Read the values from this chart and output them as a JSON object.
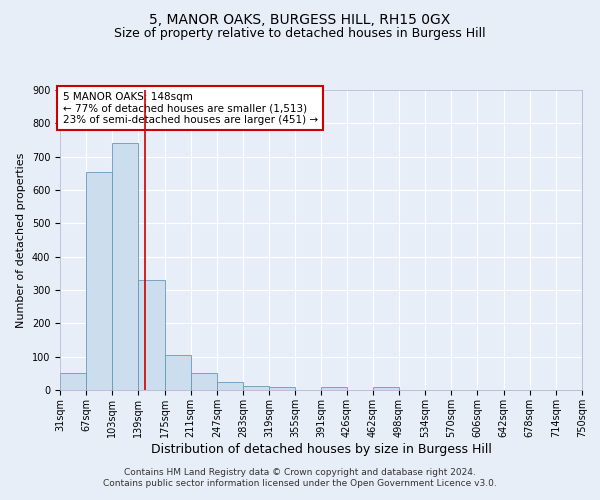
{
  "title": "5, MANOR OAKS, BURGESS HILL, RH15 0GX",
  "subtitle": "Size of property relative to detached houses in Burgess Hill",
  "xlabel": "Distribution of detached houses by size in Burgess Hill",
  "ylabel": "Number of detached properties",
  "footer_line1": "Contains HM Land Registry data © Crown copyright and database right 2024.",
  "footer_line2": "Contains public sector information licensed under the Open Government Licence v3.0.",
  "bin_labels": [
    "31sqm",
    "67sqm",
    "103sqm",
    "139sqm",
    "175sqm",
    "211sqm",
    "247sqm",
    "283sqm",
    "319sqm",
    "355sqm",
    "391sqm",
    "426sqm",
    "462sqm",
    "498sqm",
    "534sqm",
    "570sqm",
    "606sqm",
    "642sqm",
    "678sqm",
    "714sqm",
    "750sqm"
  ],
  "bin_edges": [
    31,
    67,
    103,
    139,
    175,
    211,
    247,
    283,
    319,
    355,
    391,
    426,
    462,
    498,
    534,
    570,
    606,
    642,
    678,
    714,
    750
  ],
  "bar_heights": [
    50,
    655,
    740,
    330,
    105,
    50,
    25,
    13,
    10,
    0,
    10,
    0,
    10,
    0,
    0,
    0,
    0,
    0,
    0,
    0
  ],
  "bar_color": "#ccdded",
  "bar_edge_color": "#6699bb",
  "red_line_x": 148,
  "annotation_line1": "5 MANOR OAKS: 148sqm",
  "annotation_line2": "← 77% of detached houses are smaller (1,513)",
  "annotation_line3": "23% of semi-detached houses are larger (451) →",
  "annotation_box_color": "#ffffff",
  "annotation_box_edge_color": "#cc0000",
  "ylim": [
    0,
    900
  ],
  "yticks": [
    0,
    100,
    200,
    300,
    400,
    500,
    600,
    700,
    800,
    900
  ],
  "background_color": "#e8eef8",
  "grid_color": "#ffffff",
  "title_fontsize": 10,
  "subtitle_fontsize": 9,
  "xlabel_fontsize": 9,
  "ylabel_fontsize": 8,
  "tick_fontsize": 7,
  "annotation_fontsize": 7.5,
  "footer_fontsize": 6.5
}
